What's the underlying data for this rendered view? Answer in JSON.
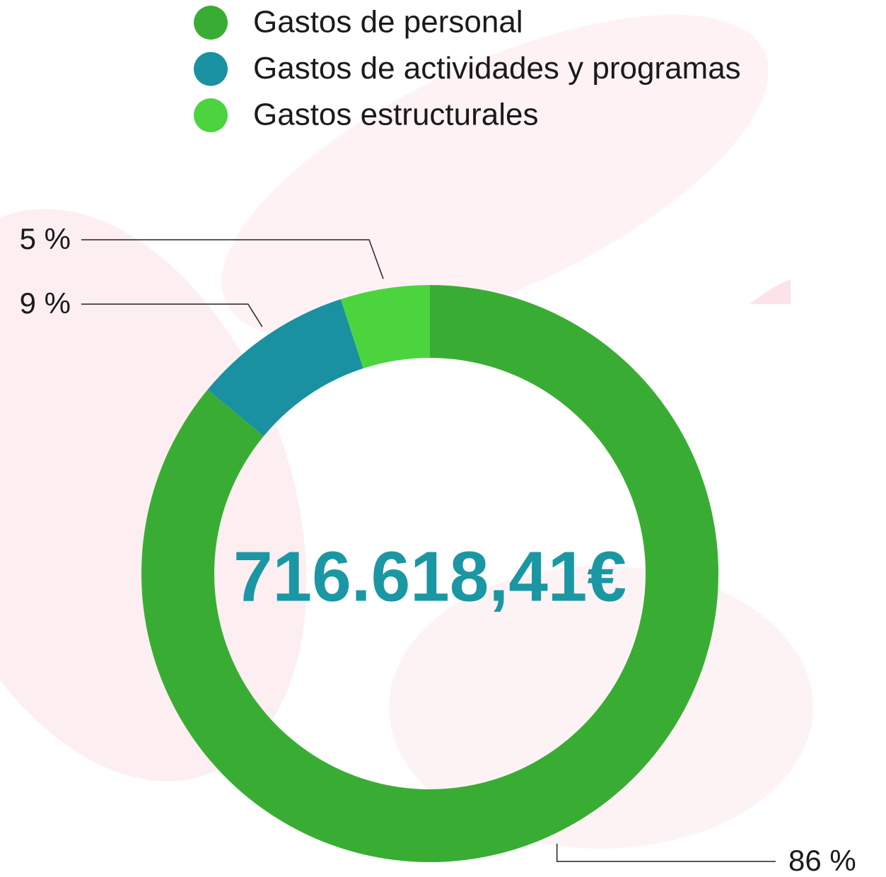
{
  "chart_data": {
    "type": "pie",
    "donut": true,
    "categories": [
      "Gastos de personal",
      "Gastos de actividades y programas",
      "Gastos estructurales"
    ],
    "values": [
      86,
      9,
      5
    ],
    "value_labels": [
      "86 %",
      "9 %",
      "5 %"
    ],
    "colors": [
      "#39ad33",
      "#1a91a0",
      "#4cd43e"
    ],
    "center_label": "716.618,41€"
  }
}
